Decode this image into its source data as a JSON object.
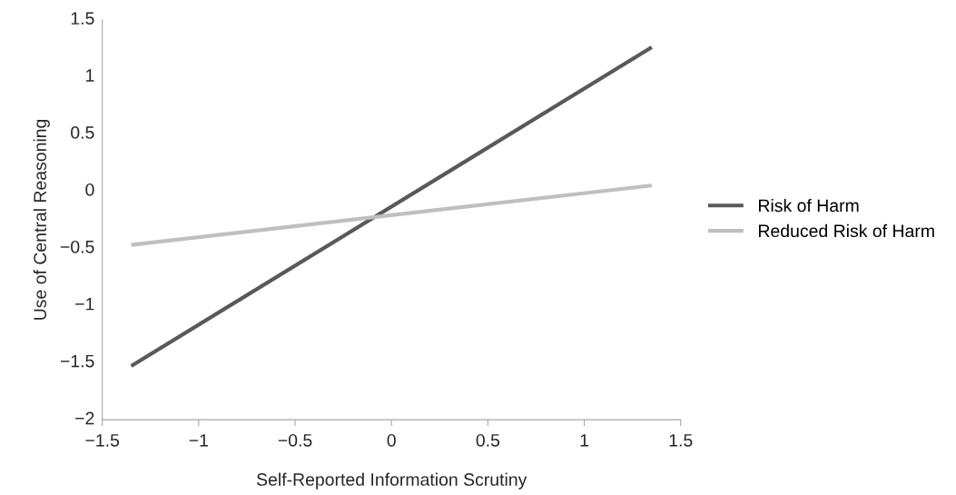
{
  "chart_data": {
    "type": "line",
    "xlabel": "Self-Reported Information Scrutiny",
    "ylabel": "Use of Central Reasoning",
    "series": [
      {
        "name": "Risk of Harm",
        "color": "#595959",
        "values": [
          -1.53,
          1.26
        ]
      },
      {
        "name": "Reduced Risk of Harm",
        "color": "#bfbfbf",
        "values": [
          -0.47,
          0.05
        ]
      }
    ],
    "x": [
      -1.35,
      1.35
    ],
    "xlim": [
      -1.5,
      1.5
    ],
    "ylim": [
      -2,
      1.5
    ],
    "xticks": [
      {
        "value": -1.5,
        "label": "−1.5"
      },
      {
        "value": -1,
        "label": "−1"
      },
      {
        "value": -0.5,
        "label": "−0.5"
      },
      0,
      0.5,
      1,
      1.5
    ],
    "yticks": [
      {
        "value": -2,
        "label": "−2"
      },
      {
        "value": -1.5,
        "label": "−1.5"
      },
      {
        "value": -1,
        "label": "−1"
      },
      {
        "value": -0.5,
        "label": "−0.5"
      },
      0,
      0.5,
      1,
      1.5
    ],
    "grid": false,
    "legend": "right",
    "marker": "none",
    "line_style": "solid"
  }
}
